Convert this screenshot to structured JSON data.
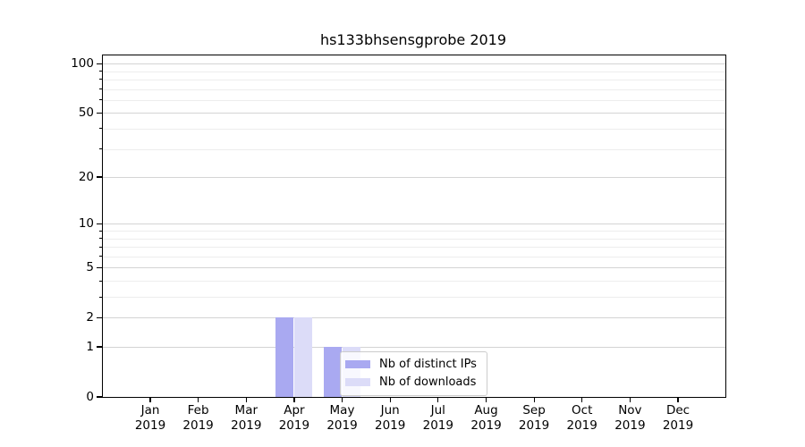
{
  "title": "hs133bhsensgprobe 2019",
  "chart_data": {
    "type": "bar",
    "title": "hs133bhsensgprobe 2019",
    "xlabel": "",
    "ylabel": "",
    "yscale": "symlog-like (position proportional to ln(1+y))",
    "ylim": [
      0,
      112
    ],
    "grid": "horizontal major and minor gridlines",
    "legend_position": "inside plot, lower center",
    "yticks": [
      0,
      1,
      2,
      5,
      10,
      20,
      50,
      100
    ],
    "ytick_labels": [
      "0",
      "1",
      "2",
      "5",
      "10",
      "20",
      "50",
      "100"
    ],
    "yticks_minor": [
      3,
      4,
      6,
      7,
      8,
      9,
      30,
      40,
      60,
      70,
      80,
      90
    ],
    "categories": [
      {
        "month": "Jan",
        "year": "2019"
      },
      {
        "month": "Feb",
        "year": "2019"
      },
      {
        "month": "Mar",
        "year": "2019"
      },
      {
        "month": "Apr",
        "year": "2019"
      },
      {
        "month": "May",
        "year": "2019"
      },
      {
        "month": "Jun",
        "year": "2019"
      },
      {
        "month": "Jul",
        "year": "2019"
      },
      {
        "month": "Aug",
        "year": "2019"
      },
      {
        "month": "Sep",
        "year": "2019"
      },
      {
        "month": "Oct",
        "year": "2019"
      },
      {
        "month": "Nov",
        "year": "2019"
      },
      {
        "month": "Dec",
        "year": "2019"
      }
    ],
    "series": [
      {
        "name": "Nb of distinct IPs",
        "color": "#a9a9f1",
        "values": [
          0,
          0,
          0,
          2,
          1,
          0,
          0,
          0,
          0,
          0,
          0,
          0
        ]
      },
      {
        "name": "Nb of downloads",
        "color": "#dcdcf8",
        "values": [
          0,
          0,
          0,
          2,
          1,
          0,
          0,
          0,
          0,
          0,
          0,
          0
        ]
      }
    ],
    "colors": {
      "spine": "#000000",
      "grid_major": "#d4d4d4",
      "grid_minor": "#ededed",
      "legend_border": "#cccccc"
    }
  }
}
